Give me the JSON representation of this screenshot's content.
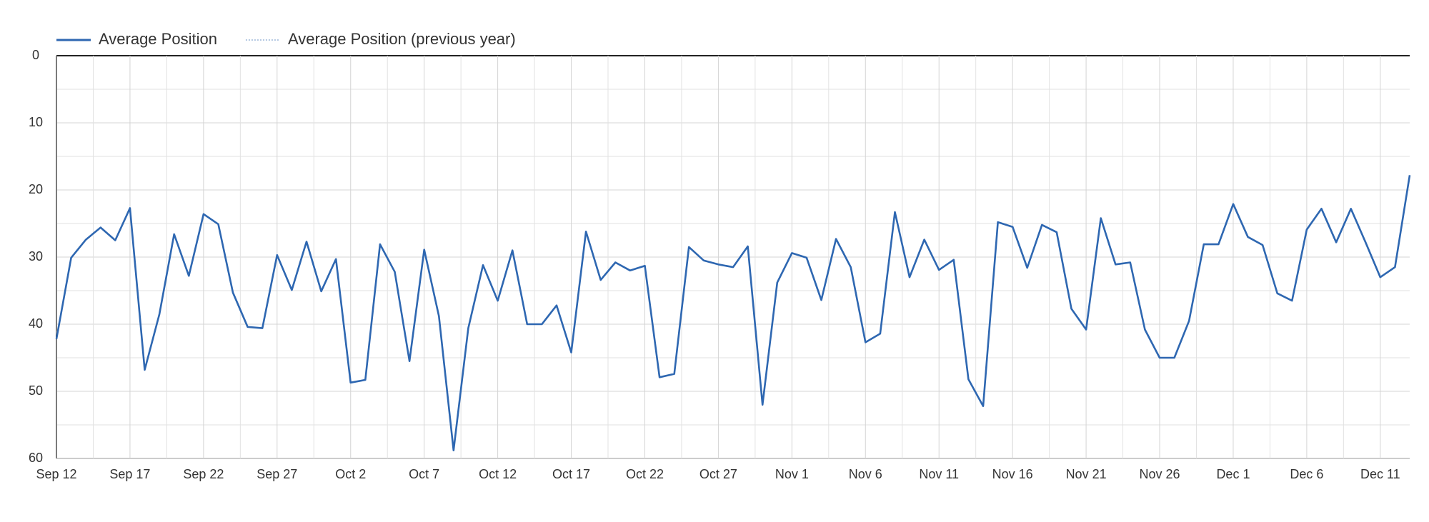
{
  "chart_data": {
    "type": "line",
    "categories": [
      "Sep 12",
      null,
      null,
      null,
      null,
      "Sep 17",
      null,
      null,
      null,
      null,
      "Sep 22",
      null,
      null,
      null,
      null,
      "Sep 27",
      null,
      null,
      null,
      null,
      "Oct 2",
      null,
      null,
      null,
      null,
      "Oct 7",
      null,
      null,
      null,
      null,
      "Oct 12",
      null,
      null,
      null,
      null,
      "Oct 17",
      null,
      null,
      null,
      null,
      "Oct 22",
      null,
      null,
      null,
      null,
      "Oct 27",
      null,
      null,
      null,
      null,
      "Nov 1",
      null,
      null,
      null,
      null,
      "Nov 6",
      null,
      null,
      null,
      null,
      "Nov 11",
      null,
      null,
      null,
      null,
      "Nov 16",
      null,
      null,
      null,
      null,
      "Nov 21",
      null,
      null,
      null,
      null,
      "Nov 26",
      null,
      null,
      null,
      null,
      "Dec 1",
      null,
      null,
      null,
      null,
      "Dec 6",
      null,
      null,
      null,
      null,
      "Dec 11",
      null,
      null
    ],
    "series": [
      {
        "name": "Average Position",
        "color": "#2e67b1",
        "style": "solid",
        "values": [
          42.2,
          30.1,
          27.4,
          25.6,
          27.5,
          22.7,
          46.8,
          38.5,
          26.6,
          32.8,
          23.6,
          25.1,
          35.3,
          40.4,
          40.6,
          29.7,
          34.9,
          27.7,
          35.1,
          30.3,
          48.7,
          48.3,
          28.1,
          32.2,
          45.5,
          28.9,
          38.8,
          58.8,
          40.6,
          31.2,
          36.5,
          29.0,
          40.0,
          40.0,
          37.2,
          44.2,
          26.2,
          33.4,
          30.8,
          32.0,
          31.3,
          47.9,
          47.4,
          28.5,
          30.5,
          31.1,
          31.5,
          28.4,
          52.0,
          33.8,
          29.4,
          30.1,
          36.4,
          27.3,
          31.5,
          42.7,
          41.4,
          23.3,
          33.0,
          27.4,
          31.9,
          30.4,
          48.2,
          52.2,
          24.8,
          25.5,
          31.6,
          25.2,
          26.3,
          37.7,
          40.8,
          24.2,
          31.1,
          30.8,
          40.8,
          45.0,
          45.0,
          39.5,
          28.1,
          28.1,
          22.1,
          27.0,
          28.2,
          35.4,
          36.5,
          25.9,
          22.8,
          27.8,
          22.8,
          27.8,
          33.0,
          31.5,
          17.8
        ]
      },
      {
        "name": "Average Position (previous year)",
        "color": "#9bb5d8",
        "style": "dotted",
        "values": [
          null,
          null,
          null,
          null,
          null,
          null,
          null,
          null,
          null,
          null,
          null,
          null,
          null,
          null,
          null,
          null,
          null,
          null,
          null,
          null,
          null,
          null,
          null,
          null,
          null,
          null,
          null,
          null,
          null,
          null,
          null,
          null,
          null,
          null,
          null,
          null,
          null,
          null,
          null,
          null,
          null,
          null,
          null,
          null,
          null,
          null,
          null,
          null,
          null,
          null,
          null,
          null,
          null,
          null,
          null,
          null,
          null,
          null,
          null,
          null,
          null,
          null,
          null,
          null,
          null,
          null,
          null,
          null,
          null,
          null,
          null,
          null,
          null,
          null,
          null,
          null,
          null,
          null,
          null,
          null,
          null,
          null,
          null,
          null,
          null,
          null,
          null,
          null,
          null,
          null,
          null,
          null,
          null
        ]
      }
    ],
    "ylim": [
      60,
      0
    ],
    "yticks": [
      0,
      10,
      20,
      30,
      40,
      50,
      60
    ],
    "grid": true,
    "legend": "top-left"
  }
}
